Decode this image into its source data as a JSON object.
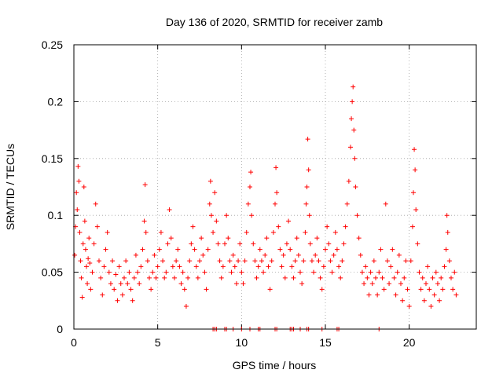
{
  "chart_data": {
    "type": "scatter",
    "title": "Day 136 of 2020, SRMTID for receiver zamb",
    "xlabel": "GPS time / hours",
    "ylabel": "SRMTID / TECUs",
    "xlim": [
      0,
      24
    ],
    "ylim": [
      0,
      0.25
    ],
    "xticks": [
      0,
      5,
      10,
      15,
      20
    ],
    "xtick_labels": [
      "0",
      "5",
      "10",
      "15",
      "20"
    ],
    "yticks": [
      0,
      0.05,
      0.1,
      0.15,
      0.2,
      0.25
    ],
    "ytick_labels": [
      "0",
      "0.05",
      "0.1",
      "0.15",
      "0.2",
      "0.25"
    ],
    "grid": true,
    "marker": "+",
    "color": "#ff0000",
    "series": [
      {
        "name": "SRMTID",
        "points": [
          [
            0.05,
            0.065
          ],
          [
            0.1,
            0.09
          ],
          [
            0.15,
            0.12
          ],
          [
            0.2,
            0.105
          ],
          [
            0.25,
            0.143
          ],
          [
            0.3,
            0.13
          ],
          [
            0.35,
            0.085
          ],
          [
            0.4,
            0.06
          ],
          [
            0.45,
            0.045
          ],
          [
            0.5,
            0.028
          ],
          [
            0.55,
            0.075
          ],
          [
            0.6,
            0.125
          ],
          [
            0.65,
            0.095
          ],
          [
            0.7,
            0.07
          ],
          [
            0.75,
            0.055
          ],
          [
            0.8,
            0.04
          ],
          [
            0.85,
            0.062
          ],
          [
            0.9,
            0.08
          ],
          [
            0.95,
            0.058
          ],
          [
            1.0,
            0.035
          ],
          [
            1.1,
            0.05
          ],
          [
            1.2,
            0.075
          ],
          [
            1.3,
            0.11
          ],
          [
            1.4,
            0.09
          ],
          [
            1.5,
            0.06
          ],
          [
            1.6,
            0.045
          ],
          [
            1.7,
            0.03
          ],
          [
            1.8,
            0.055
          ],
          [
            1.9,
            0.07
          ],
          [
            2.0,
            0.085
          ],
          [
            2.1,
            0.05
          ],
          [
            2.2,
            0.04
          ],
          [
            2.3,
            0.06
          ],
          [
            2.4,
            0.035
          ],
          [
            2.5,
            0.048
          ],
          [
            2.6,
            0.025
          ],
          [
            2.7,
            0.055
          ],
          [
            2.8,
            0.04
          ],
          [
            2.9,
            0.03
          ],
          [
            3.0,
            0.045
          ],
          [
            3.1,
            0.06
          ],
          [
            3.2,
            0.04
          ],
          [
            3.3,
            0.05
          ],
          [
            3.4,
            0.035
          ],
          [
            3.5,
            0.025
          ],
          [
            3.6,
            0.045
          ],
          [
            3.7,
            0.065
          ],
          [
            3.8,
            0.05
          ],
          [
            3.9,
            0.04
          ],
          [
            4.0,
            0.055
          ],
          [
            4.1,
            0.07
          ],
          [
            4.2,
            0.095
          ],
          [
            4.25,
            0.127
          ],
          [
            4.3,
            0.085
          ],
          [
            4.4,
            0.06
          ],
          [
            4.5,
            0.045
          ],
          [
            4.6,
            0.035
          ],
          [
            4.7,
            0.05
          ],
          [
            4.8,
            0.065
          ],
          [
            4.9,
            0.045
          ],
          [
            5.0,
            0.055
          ],
          [
            5.1,
            0.07
          ],
          [
            5.2,
            0.085
          ],
          [
            5.3,
            0.06
          ],
          [
            5.4,
            0.045
          ],
          [
            5.5,
            0.05
          ],
          [
            5.6,
            0.075
          ],
          [
            5.7,
            0.105
          ],
          [
            5.8,
            0.08
          ],
          [
            5.9,
            0.055
          ],
          [
            6.0,
            0.045
          ],
          [
            6.1,
            0.06
          ],
          [
            6.2,
            0.07
          ],
          [
            6.3,
            0.055
          ],
          [
            6.4,
            0.04
          ],
          [
            6.5,
            0.05
          ],
          [
            6.6,
            0.035
          ],
          [
            6.7,
            0.02
          ],
          [
            6.8,
            0.045
          ],
          [
            6.9,
            0.06
          ],
          [
            7.0,
            0.075
          ],
          [
            7.1,
            0.09
          ],
          [
            7.2,
            0.07
          ],
          [
            7.3,
            0.055
          ],
          [
            7.4,
            0.045
          ],
          [
            7.5,
            0.06
          ],
          [
            7.6,
            0.08
          ],
          [
            7.7,
            0.065
          ],
          [
            7.8,
            0.05
          ],
          [
            7.9,
            0.035
          ],
          [
            8.0,
            0.07
          ],
          [
            8.1,
            0.11
          ],
          [
            8.15,
            0.13
          ],
          [
            8.2,
            0.1
          ],
          [
            8.3,
            0.085
          ],
          [
            8.4,
            0.12
          ],
          [
            8.5,
            0.095
          ],
          [
            8.6,
            0.075
          ],
          [
            8.7,
            0.06
          ],
          [
            8.8,
            0.045
          ],
          [
            8.9,
            0.055
          ],
          [
            9.0,
            0.075
          ],
          [
            9.1,
            0.1
          ],
          [
            9.2,
            0.08
          ],
          [
            9.3,
            0.06
          ],
          [
            9.4,
            0.05
          ],
          [
            9.5,
            0.065
          ],
          [
            9.6,
            0.055
          ],
          [
            9.7,
            0.04
          ],
          [
            9.8,
            0.06
          ],
          [
            9.9,
            0.075
          ],
          [
            10.0,
            0.05
          ],
          [
            10.1,
            0.04
          ],
          [
            10.2,
            0.06
          ],
          [
            10.3,
            0.085
          ],
          [
            10.4,
            0.11
          ],
          [
            10.5,
            0.125
          ],
          [
            10.55,
            0.138
          ],
          [
            10.6,
            0.1
          ],
          [
            10.7,
            0.075
          ],
          [
            10.8,
            0.06
          ],
          [
            10.9,
            0.045
          ],
          [
            11.0,
            0.055
          ],
          [
            11.1,
            0.07
          ],
          [
            11.2,
            0.06
          ],
          [
            11.3,
            0.05
          ],
          [
            11.4,
            0.065
          ],
          [
            11.5,
            0.08
          ],
          [
            11.6,
            0.055
          ],
          [
            11.7,
            0.035
          ],
          [
            11.8,
            0.06
          ],
          [
            11.9,
            0.085
          ],
          [
            12.0,
            0.11
          ],
          [
            12.05,
            0.142
          ],
          [
            12.1,
            0.12
          ],
          [
            12.2,
            0.09
          ],
          [
            12.3,
            0.07
          ],
          [
            12.4,
            0.055
          ],
          [
            12.5,
            0.065
          ],
          [
            12.6,
            0.045
          ],
          [
            12.7,
            0.075
          ],
          [
            12.8,
            0.095
          ],
          [
            12.9,
            0.07
          ],
          [
            13.0,
            0.055
          ],
          [
            13.1,
            0.045
          ],
          [
            13.2,
            0.06
          ],
          [
            13.3,
            0.08
          ],
          [
            13.4,
            0.065
          ],
          [
            13.5,
            0.05
          ],
          [
            13.6,
            0.04
          ],
          [
            13.7,
            0.06
          ],
          [
            13.8,
            0.085
          ],
          [
            13.85,
            0.11
          ],
          [
            13.9,
            0.125
          ],
          [
            13.95,
            0.167
          ],
          [
            14.0,
            0.14
          ],
          [
            14.05,
            0.1
          ],
          [
            14.1,
            0.075
          ],
          [
            14.2,
            0.06
          ],
          [
            14.3,
            0.05
          ],
          [
            14.4,
            0.065
          ],
          [
            14.5,
            0.08
          ],
          [
            14.6,
            0.06
          ],
          [
            14.7,
            0.045
          ],
          [
            14.8,
            0.035
          ],
          [
            14.9,
            0.055
          ],
          [
            15.0,
            0.07
          ],
          [
            15.1,
            0.09
          ],
          [
            15.2,
            0.075
          ],
          [
            15.3,
            0.06
          ],
          [
            15.4,
            0.05
          ],
          [
            15.5,
            0.065
          ],
          [
            15.6,
            0.085
          ],
          [
            15.7,
            0.07
          ],
          [
            15.8,
            0.055
          ],
          [
            15.9,
            0.045
          ],
          [
            16.0,
            0.06
          ],
          [
            16.1,
            0.075
          ],
          [
            16.2,
            0.09
          ],
          [
            16.3,
            0.11
          ],
          [
            16.4,
            0.13
          ],
          [
            16.5,
            0.16
          ],
          [
            16.55,
            0.185
          ],
          [
            16.6,
            0.2
          ],
          [
            16.65,
            0.213
          ],
          [
            16.7,
            0.175
          ],
          [
            16.75,
            0.15
          ],
          [
            16.8,
            0.125
          ],
          [
            16.9,
            0.1
          ],
          [
            17.0,
            0.08
          ],
          [
            17.1,
            0.065
          ],
          [
            17.2,
            0.05
          ],
          [
            17.3,
            0.04
          ],
          [
            17.4,
            0.055
          ],
          [
            17.5,
            0.045
          ],
          [
            17.6,
            0.03
          ],
          [
            17.7,
            0.05
          ],
          [
            17.8,
            0.04
          ],
          [
            17.9,
            0.06
          ],
          [
            18.0,
            0.045
          ],
          [
            18.1,
            0.03
          ],
          [
            18.2,
            0.05
          ],
          [
            18.3,
            0.07
          ],
          [
            18.4,
            0.045
          ],
          [
            18.5,
            0.035
          ],
          [
            18.6,
            0.11
          ],
          [
            18.7,
            0.06
          ],
          [
            18.8,
            0.04
          ],
          [
            18.9,
            0.055
          ],
          [
            19.0,
            0.07
          ],
          [
            19.1,
            0.045
          ],
          [
            19.2,
            0.03
          ],
          [
            19.3,
            0.05
          ],
          [
            19.4,
            0.065
          ],
          [
            19.5,
            0.04
          ],
          [
            19.6,
            0.025
          ],
          [
            19.7,
            0.045
          ],
          [
            19.8,
            0.06
          ],
          [
            19.9,
            0.035
          ],
          [
            20.0,
            0.02
          ],
          [
            20.1,
            0.06
          ],
          [
            20.2,
            0.09
          ],
          [
            20.25,
            0.12
          ],
          [
            20.3,
            0.158
          ],
          [
            20.35,
            0.14
          ],
          [
            20.4,
            0.105
          ],
          [
            20.5,
            0.075
          ],
          [
            20.6,
            0.05
          ],
          [
            20.7,
            0.035
          ],
          [
            20.8,
            0.045
          ],
          [
            20.9,
            0.025
          ],
          [
            21.0,
            0.04
          ],
          [
            21.1,
            0.055
          ],
          [
            21.2,
            0.035
          ],
          [
            21.3,
            0.02
          ],
          [
            21.4,
            0.045
          ],
          [
            21.5,
            0.03
          ],
          [
            21.6,
            0.05
          ],
          [
            21.7,
            0.04
          ],
          [
            21.8,
            0.025
          ],
          [
            21.9,
            0.045
          ],
          [
            22.0,
            0.035
          ],
          [
            22.1,
            0.055
          ],
          [
            22.2,
            0.07
          ],
          [
            22.25,
            0.1
          ],
          [
            22.3,
            0.085
          ],
          [
            22.4,
            0.06
          ],
          [
            22.5,
            0.045
          ],
          [
            22.6,
            0.035
          ],
          [
            22.7,
            0.05
          ],
          [
            22.8,
            0.03
          ]
        ],
        "baseline_points": [
          [
            8.3,
            0.0
          ],
          [
            8.4,
            0.0
          ],
          [
            8.5,
            0.0
          ],
          [
            9.0,
            0.0
          ],
          [
            9.1,
            0.0
          ],
          [
            9.5,
            0.0
          ],
          [
            10.0,
            0.0
          ],
          [
            10.5,
            0.0
          ],
          [
            11.0,
            0.0
          ],
          [
            11.1,
            0.0
          ],
          [
            12.0,
            0.0
          ],
          [
            12.1,
            0.0
          ],
          [
            12.9,
            0.0
          ],
          [
            13.0,
            0.0
          ],
          [
            13.1,
            0.0
          ],
          [
            13.5,
            0.0
          ],
          [
            13.9,
            0.0
          ],
          [
            14.0,
            0.0
          ],
          [
            14.8,
            0.0
          ],
          [
            15.7,
            0.0
          ],
          [
            15.8,
            0.0
          ],
          [
            18.2,
            0.0
          ]
        ]
      }
    ]
  }
}
